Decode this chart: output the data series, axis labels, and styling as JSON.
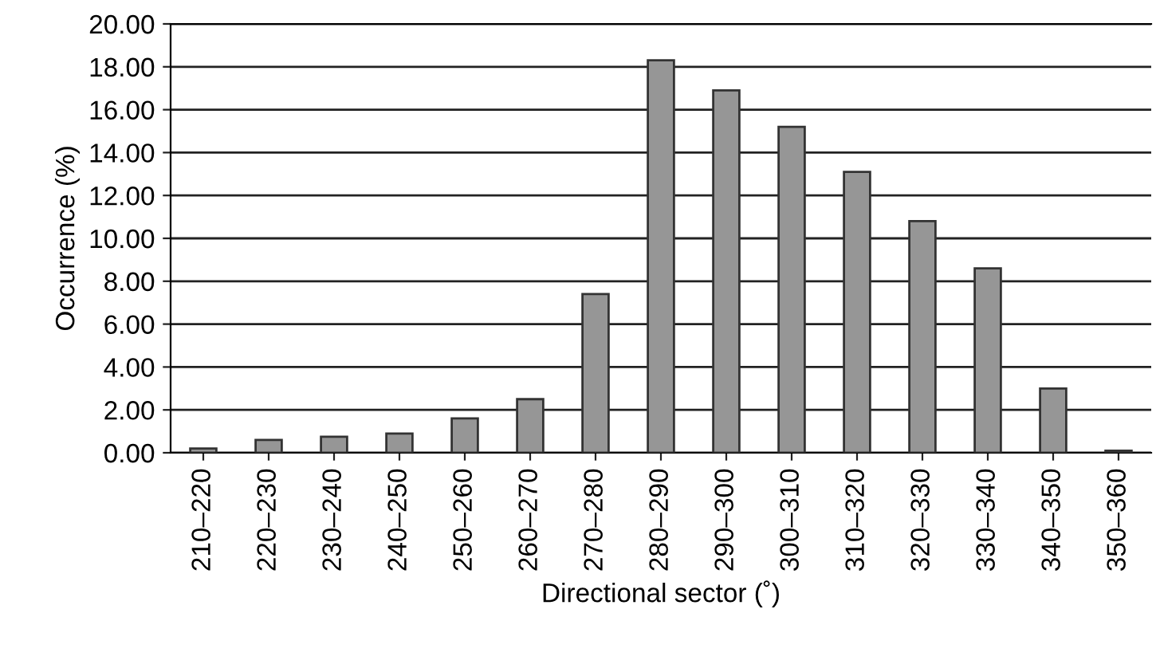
{
  "chart_data": {
    "type": "bar",
    "xlabel": "Directional sector (˚)",
    "ylabel": "Occurrence (%)",
    "categories": [
      "210–220",
      "220–230",
      "230–240",
      "240–250",
      "250–260",
      "260–270",
      "270–280",
      "280–290",
      "290–300",
      "300–310",
      "310–320",
      "320–330",
      "330–340",
      "340–350",
      "350–360"
    ],
    "values": [
      0.2,
      0.6,
      0.75,
      0.9,
      1.6,
      2.5,
      7.4,
      18.3,
      16.9,
      15.2,
      13.1,
      10.8,
      8.6,
      3.0,
      0.1
    ],
    "color": "#969696",
    "ylim": [
      0,
      20
    ],
    "yticks": [
      {
        "value": 0,
        "label": "0.00"
      },
      {
        "value": 2,
        "label": "2.00"
      },
      {
        "value": 4,
        "label": "4.00"
      },
      {
        "value": 6,
        "label": "6.00"
      },
      {
        "value": 8,
        "label": "8.00"
      },
      {
        "value": 10,
        "label": "10.00"
      },
      {
        "value": 12,
        "label": "12.00"
      },
      {
        "value": 14,
        "label": "14.00"
      },
      {
        "value": 16,
        "label": "16.00"
      },
      {
        "value": 18,
        "label": "18.00"
      },
      {
        "value": 20,
        "label": "20.00"
      }
    ],
    "grid": "y"
  }
}
